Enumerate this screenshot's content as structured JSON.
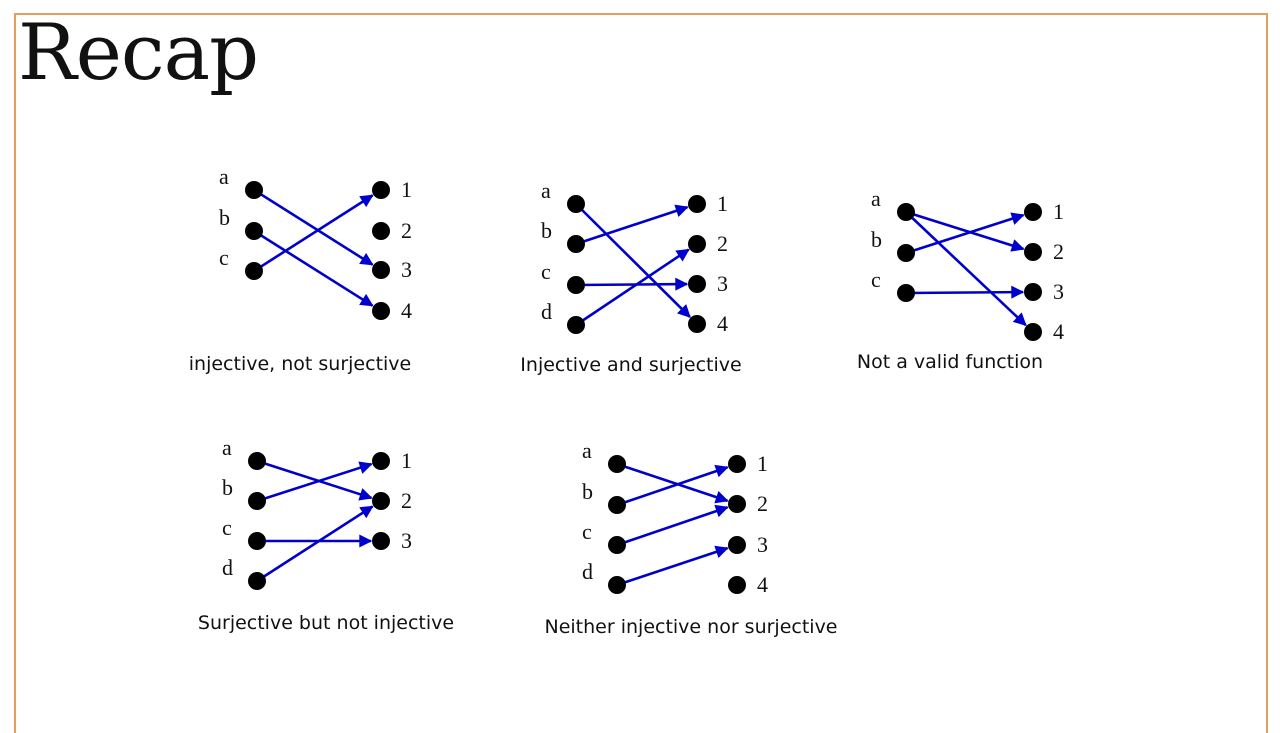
{
  "slide": {
    "title": "Recap",
    "frame_color": "#e2a05c"
  },
  "style": {
    "arrow_color": "#0000cc",
    "dot_color": "#000000"
  },
  "diagrams": [
    {
      "caption": "injective, not surjective",
      "domain": [
        "a",
        "b",
        "c"
      ],
      "codomain": [
        "1",
        "2",
        "3",
        "4"
      ],
      "mapping": [
        [
          "a",
          "3"
        ],
        [
          "b",
          "4"
        ],
        [
          "c",
          "1"
        ]
      ]
    },
    {
      "caption": "Injective and surjective",
      "domain": [
        "a",
        "b",
        "c",
        "d"
      ],
      "codomain": [
        "1",
        "2",
        "3",
        "4"
      ],
      "mapping": [
        [
          "a",
          "4"
        ],
        [
          "b",
          "1"
        ],
        [
          "c",
          "3"
        ],
        [
          "d",
          "2"
        ]
      ]
    },
    {
      "caption": "Not a valid function",
      "domain": [
        "a",
        "b",
        "c"
      ],
      "codomain": [
        "1",
        "2",
        "3",
        "4"
      ],
      "mapping": [
        [
          "a",
          "2"
        ],
        [
          "a",
          "4"
        ],
        [
          "b",
          "1"
        ],
        [
          "c",
          "3"
        ]
      ]
    },
    {
      "caption": "Surjective but not injective",
      "domain": [
        "a",
        "b",
        "c",
        "d"
      ],
      "codomain": [
        "1",
        "2",
        "3"
      ],
      "mapping": [
        [
          "a",
          "2"
        ],
        [
          "b",
          "1"
        ],
        [
          "c",
          "3"
        ],
        [
          "d",
          "2"
        ]
      ]
    },
    {
      "caption": "Neither injective nor surjective",
      "domain": [
        "a",
        "b",
        "c",
        "d"
      ],
      "codomain": [
        "1",
        "2",
        "3",
        "4"
      ],
      "mapping": [
        [
          "a",
          "2"
        ],
        [
          "b",
          "1"
        ],
        [
          "c",
          "2"
        ],
        [
          "d",
          "3"
        ]
      ]
    }
  ]
}
